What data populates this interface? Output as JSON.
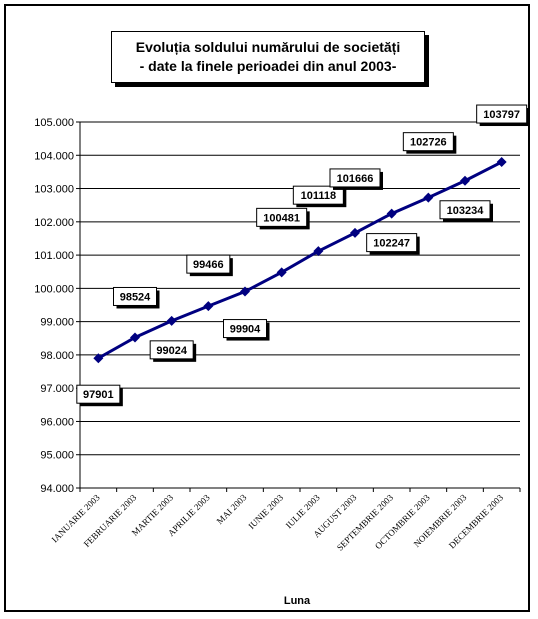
{
  "title": {
    "line1": "Evoluția soldului numărului de societăți",
    "line2": "- date la finele perioadei din anul 2003-"
  },
  "chart_data": {
    "type": "line",
    "title": "Evoluția soldului numărului de societăți - date la finele perioadei din anul 2003-",
    "xlabel": "Luna",
    "ylabel": "",
    "categories": [
      "IANUARIE 2003",
      "FEBRUARIE 2003",
      "MARTIE 2003",
      "APRILIE 2003",
      "MAI 2003",
      "IUNIE 2003",
      "IULIE 2003",
      "AUGUST 2003",
      "SEPTEMBRIE 2003",
      "OCTOMBRIE 2003",
      "NOIEMBRIE 2003",
      "DECEMBRIE 2003"
    ],
    "series": [
      {
        "values": [
          97901,
          98524,
          99024,
          99466,
          99904,
          100481,
          101118,
          101666,
          102247,
          102726,
          103234,
          103797
        ]
      }
    ],
    "ylim": [
      94000,
      105000
    ],
    "ytick_step": 1000,
    "ytick_labels": [
      "94.000",
      "95.000",
      "96.000",
      "97.000",
      "98.000",
      "99.000",
      "100.000",
      "101.000",
      "102.000",
      "103.000",
      "104.000",
      "105.000"
    ],
    "data_labels": [
      "97901",
      "98524",
      "99024",
      "99466",
      "99904",
      "100481",
      "101118",
      "101666",
      "102247",
      "102726",
      "103234",
      "103797"
    ],
    "grid": true,
    "legend": "none",
    "line_color": "#000080"
  }
}
